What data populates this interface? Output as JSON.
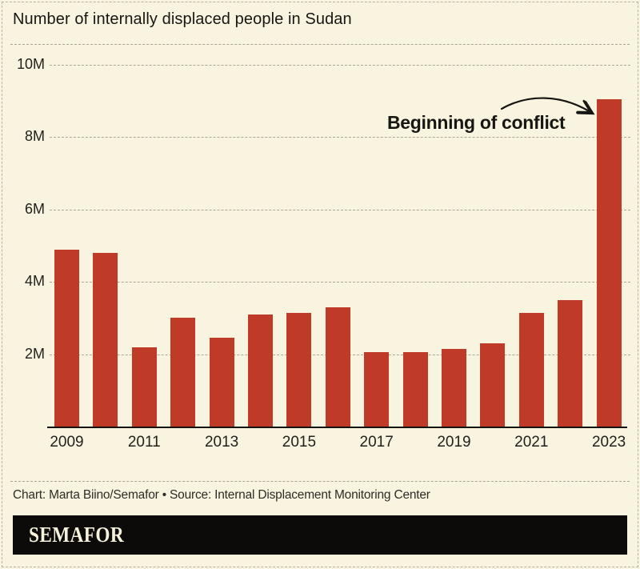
{
  "page": {
    "title": "Number of internally displaced people in Sudan",
    "footer_caption": "Chart: Marta Biino/Semafor • Source: Internal Displacement Monitoring Center",
    "logo_text": "SEMAFOR"
  },
  "colors": {
    "background": "#f9f4df",
    "bar": "#bf3a27",
    "text": "#1d1b17",
    "gridline": "#aaa697",
    "dashed_border": "#b6b2a0",
    "axis": "#14130f",
    "logo_background": "#0c0b09",
    "logo_text": "#f7f2dc"
  },
  "chart_data": {
    "type": "bar",
    "title": "Number of internally displaced people in Sudan",
    "categories": [
      "2009",
      "2010",
      "2011",
      "2012",
      "2013",
      "2014",
      "2015",
      "2016",
      "2017",
      "2018",
      "2019",
      "2020",
      "2021",
      "2022",
      "2023"
    ],
    "values": [
      4.9,
      4.8,
      2.2,
      3.0,
      2.45,
      3.1,
      3.15,
      3.3,
      2.05,
      2.05,
      2.15,
      2.3,
      3.15,
      3.5,
      9.05
    ],
    "unit": "millions of people",
    "xlabel": "",
    "ylabel": "",
    "ylim": [
      0,
      10.5
    ],
    "yticks": [
      {
        "value": 2,
        "label": "2M"
      },
      {
        "value": 4,
        "label": "4M"
      },
      {
        "value": 6,
        "label": "6M"
      },
      {
        "value": 8,
        "label": "8M"
      },
      {
        "value": 10,
        "label": "10M"
      }
    ],
    "xtick_labels": [
      "2009",
      "2011",
      "2013",
      "2015",
      "2017",
      "2019",
      "2021",
      "2023"
    ],
    "grid": "horizontal dashed",
    "legend": "none",
    "bar_color": "#bf3a27",
    "annotation": {
      "text": "Beginning of conflict",
      "target_category": "2023",
      "arrow": "curved, pointing to top of 2023 bar"
    }
  }
}
